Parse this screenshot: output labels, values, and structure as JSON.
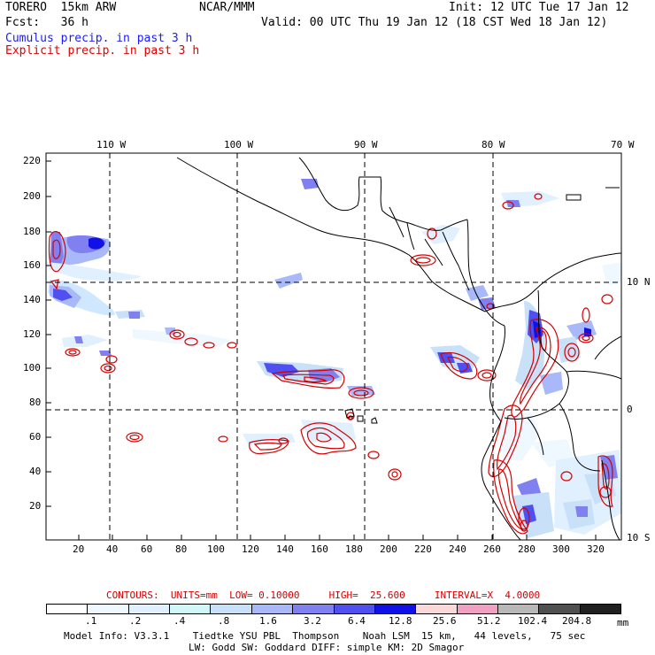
{
  "header": {
    "model": "TORERO  15km ARW",
    "center": "NCAR/MMM",
    "init": "Init: 12 UTC Tue 17 Jan 12",
    "fcst": "Fcst:   36 h",
    "valid": "Valid: 00 UTC Thu 19 Jan 12 (18 CST Wed 18 Jan 12)",
    "field1": "Cumulus precip. in past 3 h",
    "field2": "Explicit precip. in past 3 h"
  },
  "colors": {
    "field1": "#1a1aff",
    "field2": "#e00000",
    "contour": "#d40000",
    "coast": "#000000",
    "grid": "#000000"
  },
  "map": {
    "top_labels": [
      "110 W",
      "100 W",
      "90 W",
      "80 W",
      "70 W"
    ],
    "right_labels": [
      "10 N",
      "0",
      "10 S"
    ],
    "y_ticks": [
      "220",
      "200",
      "180",
      "160",
      "140",
      "120",
      "100",
      "80",
      "60",
      "40",
      "20"
    ],
    "x_ticks": [
      "20",
      "40",
      "60",
      "80",
      "100",
      "120",
      "140",
      "160",
      "180",
      "200",
      "220",
      "240",
      "260",
      "280",
      "300",
      "320"
    ]
  },
  "contour_info": {
    "label": "CONTOURS:  UNITS=mm  LOW= 0.10000     HIGH=  25.600     INTERVAL=X  4.0000"
  },
  "colorbar": {
    "colors": [
      "#ffffff",
      "#f0f8ff",
      "#e0f0ff",
      "#d0f8f8",
      "#c8e0f8",
      "#a8b8f8",
      "#8080f0",
      "#5050f0",
      "#1010e8",
      "#f8d8d8",
      "#f0a0c0",
      "#b8b8b8",
      "#505050",
      "#202020",
      "#d8a8f0"
    ],
    "labels": [
      ".1",
      ".2",
      ".4",
      ".8",
      "1.6",
      "3.2",
      "6.4",
      "12.8",
      "25.6",
      "51.2",
      "102.4",
      "204.8"
    ],
    "unit": "mm"
  },
  "footer": {
    "line1": "Model Info: V3.3.1    Tiedtke YSU PBL  Thompson    Noah LSM  15 km,   44 levels,   75 sec",
    "line2": "LW: Godd SW: Goddard DIFF: simple KM: 2D Smagor"
  }
}
